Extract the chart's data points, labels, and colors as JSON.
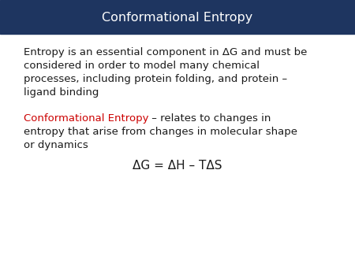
{
  "title": "Conformational Entropy",
  "title_color": "#ffffff",
  "title_bg_color": "#1e3560",
  "bg_color": "#ffffff",
  "body_bg_color": "#ffffff",
  "para1_line1": "Entropy is an essential component in ΔG and must be",
  "para1_line2": "considered in order to model many chemical",
  "para1_line3": "processes, including protein folding, and protein –",
  "para1_line4": "ligand binding",
  "para2_red": "Conformational Entropy",
  "para2_rest_line1": " – relates to changes in",
  "para2_line2": "entropy that arise from changes in molecular shape",
  "para2_line3": "or dynamics",
  "formula": "ΔG = ΔH – TΔS",
  "text_color": "#1a1a1a",
  "red_color": "#cc0000",
  "title_fontsize": 11.5,
  "body_fontsize": 9.5,
  "formula_fontsize": 11
}
